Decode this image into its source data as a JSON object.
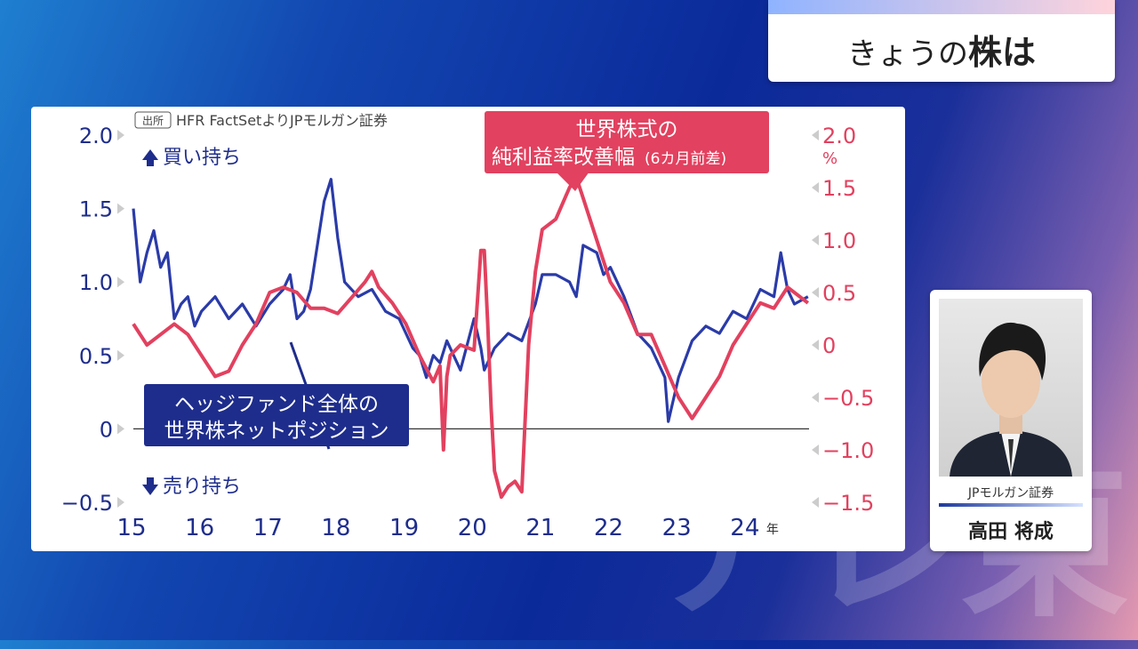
{
  "topic": {
    "prefix": "きょうの",
    "bold": "株は"
  },
  "watermark": "テレ東",
  "source": "HFR FactSetよりJPモルガン証券",
  "source_tag": "出所",
  "person": {
    "company": "JPモルガン証券",
    "name": "高田 将成"
  },
  "colors": {
    "blue": "#2a3ba8",
    "red": "#e2415f",
    "navy": "#1e2d8c"
  },
  "chart_data": {
    "type": "line",
    "x_tick_labels": [
      "15",
      "16",
      "17",
      "18",
      "19",
      "20",
      "21",
      "22",
      "23",
      "24"
    ],
    "x_unit": "年",
    "left_axis": {
      "ticks": [
        2.0,
        1.5,
        1.0,
        0.5,
        0,
        -0.5
      ],
      "labels": [
        "2.0",
        "1.5",
        "1.0",
        "0.5",
        "0",
        "−0.5"
      ],
      "ylim": [
        -0.5,
        2.0
      ]
    },
    "right_axis": {
      "ticks": [
        2.0,
        1.5,
        1.0,
        0.5,
        0,
        -0.5,
        -1.0,
        -1.5
      ],
      "labels": [
        "2.0",
        "1.5",
        "1.0",
        "0.5",
        "0",
        "−0.5",
        "−1.0",
        "−1.5"
      ],
      "unit": "%",
      "ylim": [
        -1.5,
        2.0
      ]
    },
    "upper_note": "買い持ち",
    "lower_note": "売り持ち",
    "series": [
      {
        "name": "ヘッジファンド全体の世界株ネットポジション",
        "axis": "left",
        "color": "#2a3ba8",
        "x": [
          2015.0,
          2015.1,
          2015.2,
          2015.3,
          2015.4,
          2015.5,
          2015.6,
          2015.7,
          2015.8,
          2015.9,
          2016.0,
          2016.2,
          2016.4,
          2016.6,
          2016.8,
          2017.0,
          2017.2,
          2017.3,
          2017.4,
          2017.5,
          2017.6,
          2017.8,
          2017.9,
          2018.0,
          2018.1,
          2018.3,
          2018.5,
          2018.7,
          2018.9,
          2019.0,
          2019.1,
          2019.2,
          2019.3,
          2019.4,
          2019.5,
          2019.6,
          2019.8,
          2020.0,
          2020.1,
          2020.15,
          2020.3,
          2020.5,
          2020.7,
          2020.9,
          2021.0,
          2021.2,
          2021.4,
          2021.5,
          2021.6,
          2021.8,
          2021.9,
          2022.0,
          2022.2,
          2022.4,
          2022.6,
          2022.8,
          2022.85,
          2023.0,
          2023.2,
          2023.4,
          2023.6,
          2023.8,
          2024.0,
          2024.2,
          2024.4,
          2024.5,
          2024.6,
          2024.7,
          2024.9
        ],
        "y": [
          1.5,
          1.0,
          1.2,
          1.35,
          1.1,
          1.2,
          0.75,
          0.85,
          0.9,
          0.7,
          0.8,
          0.9,
          0.75,
          0.85,
          0.7,
          0.85,
          0.95,
          1.05,
          0.75,
          0.8,
          0.95,
          1.55,
          1.7,
          1.3,
          1.0,
          0.9,
          0.95,
          0.8,
          0.75,
          0.65,
          0.55,
          0.5,
          0.35,
          0.5,
          0.45,
          0.6,
          0.4,
          0.75,
          0.55,
          0.4,
          0.55,
          0.65,
          0.6,
          0.85,
          1.05,
          1.05,
          1.0,
          0.9,
          1.25,
          1.2,
          1.05,
          1.1,
          0.9,
          0.65,
          0.55,
          0.35,
          0.05,
          0.35,
          0.6,
          0.7,
          0.65,
          0.8,
          0.75,
          0.95,
          0.9,
          1.2,
          0.95,
          0.85,
          0.9
        ]
      },
      {
        "name": "世界株式の純利益率改善幅(6カ月前差)",
        "axis": "right",
        "color": "#e2415f",
        "x": [
          2015.0,
          2015.2,
          2015.4,
          2015.6,
          2015.8,
          2016.0,
          2016.2,
          2016.4,
          2016.6,
          2016.8,
          2017.0,
          2017.2,
          2017.4,
          2017.6,
          2017.8,
          2018.0,
          2018.2,
          2018.4,
          2018.5,
          2018.6,
          2018.8,
          2019.0,
          2019.2,
          2019.4,
          2019.5,
          2019.55,
          2019.6,
          2019.65,
          2019.8,
          2020.0,
          2020.1,
          2020.15,
          2020.2,
          2020.25,
          2020.3,
          2020.4,
          2020.5,
          2020.6,
          2020.7,
          2020.8,
          2020.9,
          2021.0,
          2021.2,
          2021.4,
          2021.5,
          2021.6,
          2021.8,
          2022.0,
          2022.2,
          2022.4,
          2022.6,
          2022.8,
          2023.0,
          2023.2,
          2023.4,
          2023.6,
          2023.8,
          2024.0,
          2024.2,
          2024.4,
          2024.6,
          2024.7,
          2024.9
        ],
        "y": [
          0.2,
          0.0,
          0.1,
          0.2,
          0.1,
          -0.1,
          -0.3,
          -0.25,
          0.0,
          0.2,
          0.5,
          0.55,
          0.5,
          0.35,
          0.35,
          0.3,
          0.45,
          0.6,
          0.7,
          0.55,
          0.4,
          0.2,
          -0.1,
          -0.35,
          -0.2,
          -1.0,
          -0.3,
          -0.1,
          0.0,
          -0.05,
          0.9,
          0.9,
          0.2,
          -0.6,
          -1.2,
          -1.45,
          -1.35,
          -1.3,
          -1.4,
          0.0,
          0.7,
          1.1,
          1.2,
          1.5,
          1.6,
          1.4,
          1.0,
          0.6,
          0.4,
          0.1,
          0.1,
          -0.2,
          -0.5,
          -0.7,
          -0.5,
          -0.3,
          0.0,
          0.2,
          0.4,
          0.35,
          0.55,
          0.5,
          0.4
        ]
      }
    ],
    "labels": {
      "blue_line1": "ヘッジファンド全体の",
      "blue_line2": "世界株ネットポジション",
      "red_line1": "世界株式の",
      "red_line2": "純利益率改善幅",
      "red_line2_small": "(6カ月前差)"
    }
  }
}
